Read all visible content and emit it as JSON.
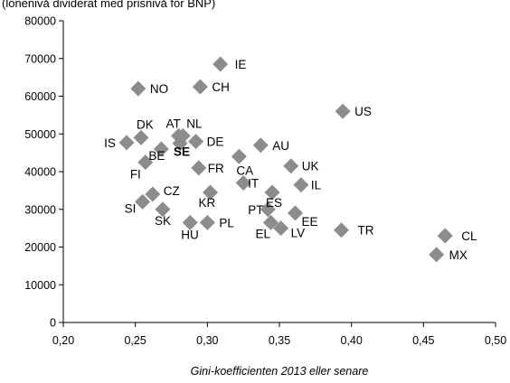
{
  "caption": "(lönenivå dividerat med prisnivå för BNP)",
  "chart_data": {
    "type": "scatter",
    "title": "",
    "xlabel": "Gini-koefficienten 2013 eller senare",
    "ylabel": "",
    "xlim": [
      0.2,
      0.5
    ],
    "ylim": [
      0,
      80000
    ],
    "x_ticks": [
      "0,20",
      "0,25",
      "0,30",
      "0,35",
      "0,40",
      "0,45",
      "0,50"
    ],
    "y_ticks": [
      "0",
      "10000",
      "20000",
      "30000",
      "40000",
      "50000",
      "60000",
      "70000",
      "80000"
    ],
    "marker_color": "#8c8c8c",
    "grid": false,
    "points": [
      {
        "label": "IE",
        "x": 0.309,
        "y": 68500
      },
      {
        "label": "NO",
        "x": 0.252,
        "y": 62000
      },
      {
        "label": "CH",
        "x": 0.295,
        "y": 62500
      },
      {
        "label": "US",
        "x": 0.394,
        "y": 56000
      },
      {
        "label": "DK",
        "x": 0.254,
        "y": 49000
      },
      {
        "label": "AT",
        "x": 0.28,
        "y": 49500
      },
      {
        "label": "NL",
        "x": 0.283,
        "y": 49500
      },
      {
        "label": "IS",
        "x": 0.244,
        "y": 47700
      },
      {
        "label": "DE",
        "x": 0.292,
        "y": 48000
      },
      {
        "label": "AU",
        "x": 0.337,
        "y": 47000
      },
      {
        "label": "SE",
        "x": 0.281,
        "y": 47500,
        "bold": true
      },
      {
        "label": "BE",
        "x": 0.268,
        "y": 46000
      },
      {
        "label": "CA",
        "x": 0.322,
        "y": 44000
      },
      {
        "label": "UK",
        "x": 0.358,
        "y": 41500
      },
      {
        "label": "FI",
        "x": 0.257,
        "y": 42500
      },
      {
        "label": "FR",
        "x": 0.294,
        "y": 41000
      },
      {
        "label": "IT",
        "x": 0.325,
        "y": 37000
      },
      {
        "label": "IL",
        "x": 0.365,
        "y": 36500
      },
      {
        "label": "ES",
        "x": 0.345,
        "y": 34500
      },
      {
        "label": "KR",
        "x": 0.302,
        "y": 34500
      },
      {
        "label": "CZ",
        "x": 0.262,
        "y": 34000
      },
      {
        "label": "SI",
        "x": 0.255,
        "y": 32000
      },
      {
        "label": "SK",
        "x": 0.269,
        "y": 30000
      },
      {
        "label": "PT",
        "x": 0.342,
        "y": 30000
      },
      {
        "label": "EE",
        "x": 0.361,
        "y": 29000
      },
      {
        "label": "EL",
        "x": 0.344,
        "y": 26500
      },
      {
        "label": "HU",
        "x": 0.288,
        "y": 26500
      },
      {
        "label": "PL",
        "x": 0.3,
        "y": 26500
      },
      {
        "label": "LV",
        "x": 0.351,
        "y": 25000
      },
      {
        "label": "TR",
        "x": 0.393,
        "y": 24500
      },
      {
        "label": "CL",
        "x": 0.465,
        "y": 23000
      },
      {
        "label": "MX",
        "x": 0.459,
        "y": 18000
      }
    ]
  }
}
